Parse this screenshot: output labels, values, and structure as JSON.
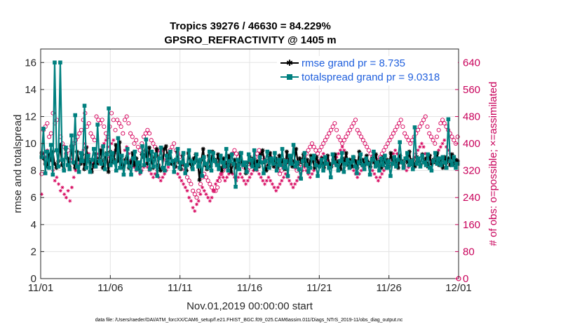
{
  "chart_data": {
    "type": "line",
    "title": "Tropics 39276 / 46630 = 84.229%",
    "subtitle": "GPSRO_REFRACTIVITY @ 1405 m",
    "xlabel": "Nov.01,2019 00:00:00 start",
    "ylabel": "rmse and totalspread",
    "ylabel_right": "# of obs: o=possible; ×=assimilated",
    "footer": "data file: /Users/raeder/DAI/ATM_forcXX/CAM6_setup/f.e21.FHIST_BGC.f09_025.CAM6assim.011/Diags_NTrS_2019-11/obs_diag_output.nc",
    "xlim": [
      0,
      30
    ],
    "ylim": [
      0,
      17
    ],
    "ylim_right": [
      0,
      680
    ],
    "x_ticks": [
      0,
      5,
      10,
      15,
      20,
      25,
      30
    ],
    "x_tick_labels": [
      "11/01",
      "11/06",
      "11/11",
      "11/16",
      "11/21",
      "11/26",
      "12/01"
    ],
    "y_ticks": [
      0,
      2,
      4,
      6,
      8,
      10,
      12,
      14,
      16
    ],
    "y_tick_labels": [
      "0",
      "2",
      "4",
      "6",
      "8",
      "10",
      "12",
      "14",
      "16"
    ],
    "y_ticks_right": [
      0,
      80,
      160,
      240,
      320,
      400,
      480,
      560,
      640
    ],
    "y_tick_labels_right": [
      "0",
      "80",
      "160",
      "240",
      "320",
      "400",
      "480",
      "560",
      "640"
    ],
    "grid": true,
    "legend_position": "top-right",
    "series": [
      {
        "name": "rmse grand pr = 8.735",
        "color": "#000000",
        "marker": "star",
        "values": [
          9.3,
          8.9,
          8.5,
          8.3,
          9.2,
          8.8,
          9.4,
          8.5,
          8.2,
          8.7,
          9.9,
          8.4,
          8.1,
          9.6,
          8.9,
          8.3,
          9.8,
          8.6,
          8.2,
          9.4,
          8.8,
          8.5,
          9.2,
          8.1,
          9.7,
          8.9,
          8.6,
          7.9,
          8.4,
          9.2,
          8.5,
          8.9,
          9.5,
          8.2,
          8.8,
          9.3,
          7.9,
          9.4,
          8.6,
          8.8,
          9.9,
          8.7,
          10.1,
          8.3,
          8.2,
          8.8,
          9.0,
          8.2,
          8.6,
          9.3,
          8.4,
          8.9,
          8.1,
          8.3,
          9.2,
          9.0,
          9.5,
          8.5,
          9.7,
          8.8,
          8.2,
          9.0,
          9.6,
          8.4,
          8.0,
          8.2,
          9.6,
          9.8,
          8.6,
          9.3,
          8.5,
          8.7,
          8.3,
          9.4,
          8.6,
          8.1,
          9.1,
          8.4,
          8.0,
          9.3,
          8.5,
          8.2,
          8.9,
          9.2,
          8.7,
          7.3,
          8.8,
          9.6,
          8.4,
          8.1,
          9.1,
          8.3,
          9.4,
          8.8,
          8.6,
          9.2,
          8.2,
          8.0,
          8.9,
          8.3,
          8.6,
          9.1,
          7.9,
          8.5,
          8.8,
          8.2,
          8.5,
          9.3,
          8.6,
          8.4,
          7.8,
          8.6,
          9.0,
          8.4,
          8.9,
          8.1,
          8.7,
          8.3,
          9.2,
          9.5,
          8.6,
          8.0,
          8.4,
          9.3,
          8.7,
          8.3,
          8.9,
          8.2,
          9.1,
          8.5,
          8.8,
          8.1,
          9.4,
          8.6,
          9.0,
          8.3,
          8.7,
          9.6,
          8.5,
          8.9,
          8.6,
          9.2,
          8.4,
          8.8,
          8.3,
          9.1,
          8.7,
          8.2,
          9.0,
          8.6,
          8.4,
          8.9,
          8.2,
          8.6,
          9.1,
          8.5,
          8.3,
          8.8,
          9.2,
          8.4,
          8.7,
          8.1,
          8.9,
          8.6,
          9.3,
          8.4,
          8.8,
          8.3,
          9.0,
          8.7,
          8.2,
          9.4,
          8.5,
          8.8,
          8.4,
          9.1,
          8.6,
          8.3,
          8.9,
          8.6,
          9.2,
          8.4,
          8.7,
          8.2,
          9.0,
          8.6,
          8.8,
          8.3,
          9.3,
          8.5,
          8.9,
          8.6,
          8.2,
          9.1,
          8.7,
          8.4,
          8.9,
          8.6,
          9.4,
          8.5,
          8.8,
          8.3,
          9.0,
          8.7,
          8.4,
          9.2,
          8.6,
          8.9,
          8.3,
          9.1,
          8.5,
          8.8,
          8.6,
          9.3,
          8.4,
          8.7,
          8.2,
          9.0,
          8.6,
          8.9,
          8.4,
          9.2,
          8.5,
          8.8,
          8.7
        ]
      },
      {
        "name": "totalspread grand pr = 9.0318",
        "color": "#00807f",
        "marker": "square",
        "values": [
          9.0,
          11.1,
          7.8,
          9.4,
          8.2,
          9.9,
          7.7,
          16.0,
          9.5,
          8.3,
          16.0,
          8.8,
          8.0,
          9.7,
          8.4,
          8.1,
          10.6,
          8.6,
          12.1,
          8.3,
          7.9,
          9.3,
          8.7,
          12.8,
          8.2,
          9.1,
          7.9,
          8.8,
          9.6,
          8.3,
          11.4,
          8.7,
          8.5,
          9.8,
          8.1,
          9.2,
          12.6,
          8.4,
          9.3,
          8.6,
          8.0,
          10.4,
          8.2,
          9.1,
          7.7,
          8.6,
          9.6,
          8.3,
          7.7,
          8.9,
          9.4,
          8.1,
          8.6,
          7.9,
          9.8,
          8.4,
          10.3,
          8.8,
          8.1,
          9.4,
          8.3,
          9.2,
          7.6,
          8.9,
          9.7,
          8.2,
          8.0,
          9.1,
          8.5,
          9.4,
          8.7,
          7.9,
          8.8,
          9.6,
          8.2,
          8.6,
          9.3,
          7.8,
          8.4,
          9.5,
          8.7,
          8.1,
          8.6,
          9.2,
          8.3,
          8.8,
          7.6,
          9.0,
          8.5,
          8.2,
          9.4,
          8.0,
          9.3,
          8.7,
          8.4,
          8.1,
          9.1,
          8.6,
          8.3,
          9.6,
          8.0,
          8.7,
          9.2,
          8.5,
          6.8,
          8.8,
          8.1,
          9.3,
          8.4,
          8.6,
          7.9,
          9.2,
          8.8,
          8.3,
          9.5,
          8.1,
          8.4,
          9.0,
          8.6,
          7.8,
          8.7,
          9.4,
          8.2,
          8.9,
          8.5,
          9.3,
          8.0,
          8.8,
          8.4,
          9.6,
          8.2,
          8.7,
          7.6,
          9.1,
          8.5,
          9.9,
          8.3,
          8.6,
          8.1,
          7.4,
          8.7,
          9.3,
          8.4,
          7.9,
          8.2,
          8.9,
          9.1,
          8.4,
          7.6,
          8.3,
          8.8,
          8.0,
          9.0,
          8.5,
          8.2,
          7.5,
          9.2,
          8.6,
          8.4,
          8.0,
          8.7,
          9.3,
          7.9,
          8.5,
          8.8,
          8.2,
          8.6,
          9.0,
          8.3,
          7.8,
          8.6,
          9.2,
          8.4,
          8.1,
          8.9,
          8.5,
          7.7,
          8.8,
          9.4,
          8.3,
          8.6,
          8.0,
          8.9,
          8.4,
          9.1,
          8.2,
          8.7,
          7.6,
          8.5,
          9.0,
          8.3,
          8.8,
          10.1,
          8.6,
          8.2,
          8.9,
          9.3,
          8.4,
          8.7,
          8.1,
          11.2,
          8.5,
          8.9,
          8.3,
          9.1,
          8.6,
          8.4,
          9.2,
          8.2,
          8.0,
          8.7,
          9.3,
          8.5,
          8.9,
          8.4,
          9.0,
          8.6,
          8.2,
          11.8,
          8.7,
          8.4,
          9.0,
          8.2,
          8.5
        ]
      }
    ],
    "possible_obs": {
      "name": "o = possible",
      "color": "#d6005b",
      "values": [
        310,
        440,
        450,
        460,
        420,
        430,
        490,
        460,
        470,
        380,
        420,
        400,
        390,
        370,
        380,
        350,
        360,
        400,
        410,
        420,
        430,
        440,
        470,
        490,
        450,
        460,
        430,
        420,
        410,
        480,
        470,
        460,
        470,
        450,
        430,
        420,
        450,
        490,
        470,
        440,
        470,
        460,
        450,
        430,
        470,
        480,
        460,
        430,
        420,
        400,
        410,
        390,
        380,
        400,
        420,
        430,
        440,
        430,
        410,
        400,
        390,
        380,
        370,
        380,
        370,
        360,
        350,
        370,
        380,
        390,
        400,
        380,
        370,
        360,
        340,
        330,
        320,
        300,
        290,
        280,
        260,
        250,
        240,
        260,
        280,
        300,
        310,
        300,
        290,
        280,
        270,
        260,
        260,
        270,
        290,
        310,
        320,
        330,
        340,
        350,
        360,
        370,
        380,
        370,
        360,
        350,
        340,
        330,
        330,
        320,
        330,
        340,
        350,
        360,
        370,
        380,
        370,
        360,
        350,
        340,
        350,
        360,
        350,
        340,
        330,
        320,
        310,
        320,
        330,
        340,
        350,
        360,
        350,
        340,
        330,
        320,
        330,
        340,
        350,
        360,
        370,
        380,
        390,
        400,
        390,
        380,
        370,
        380,
        390,
        400,
        410,
        420,
        430,
        440,
        450,
        460,
        440,
        420,
        410,
        400,
        410,
        420,
        430,
        440,
        450,
        460,
        470,
        440,
        430,
        420,
        410,
        400,
        390,
        380,
        370,
        360,
        350,
        340,
        350,
        360,
        370,
        380,
        390,
        400,
        410,
        420,
        430,
        440,
        450,
        460,
        470,
        450,
        430,
        420,
        410,
        400,
        410,
        420,
        430,
        440,
        450,
        460,
        470,
        480,
        450,
        430,
        420,
        410,
        400,
        420,
        440,
        460,
        470,
        460,
        450,
        440,
        430,
        420,
        410,
        400,
        420
      ]
    },
    "assimilated_obs": {
      "name": "× = assimilated",
      "color": "#d6005b",
      "values": [
        250,
        370,
        360,
        380,
        330,
        350,
        320,
        290,
        300,
        280,
        260,
        270,
        250,
        240,
        260,
        230,
        270,
        300,
        320,
        330,
        340,
        360,
        380,
        400,
        390,
        370,
        350,
        340,
        330,
        360,
        370,
        380,
        390,
        400,
        410,
        390,
        360,
        400,
        410,
        380,
        370,
        390,
        350,
        340,
        380,
        390,
        370,
        350,
        340,
        330,
        320,
        330,
        310,
        320,
        330,
        340,
        330,
        320,
        310,
        300,
        310,
        320,
        300,
        290,
        300,
        310,
        320,
        330,
        340,
        350,
        340,
        330,
        310,
        300,
        290,
        280,
        270,
        260,
        240,
        230,
        210,
        200,
        220,
        230,
        250,
        270,
        260,
        250,
        240,
        230,
        240,
        260,
        280,
        290,
        300,
        310,
        300,
        290,
        300,
        310,
        320,
        310,
        300,
        290,
        300,
        310,
        300,
        290,
        280,
        290,
        300,
        310,
        320,
        330,
        320,
        310,
        300,
        290,
        280,
        290,
        300,
        290,
        280,
        270,
        260,
        270,
        280,
        290,
        300,
        310,
        300,
        290,
        280,
        270,
        280,
        290,
        300,
        310,
        320,
        330,
        320,
        310,
        300,
        310,
        320,
        330,
        340,
        350,
        360,
        370,
        360,
        350,
        340,
        330,
        340,
        350,
        360,
        370,
        380,
        390,
        380,
        360,
        350,
        340,
        330,
        320,
        310,
        300,
        310,
        320,
        330,
        340,
        350,
        340,
        330,
        320,
        310,
        300,
        290,
        300,
        310,
        320,
        330,
        340,
        350,
        360,
        370,
        380,
        370,
        360,
        350,
        340,
        330,
        320,
        330,
        340,
        350,
        360,
        370,
        380,
        390,
        400,
        390,
        370,
        360,
        350,
        340,
        350,
        360,
        370,
        380,
        390,
        400,
        410,
        390,
        380,
        370,
        360,
        350,
        340,
        350
      ]
    }
  }
}
